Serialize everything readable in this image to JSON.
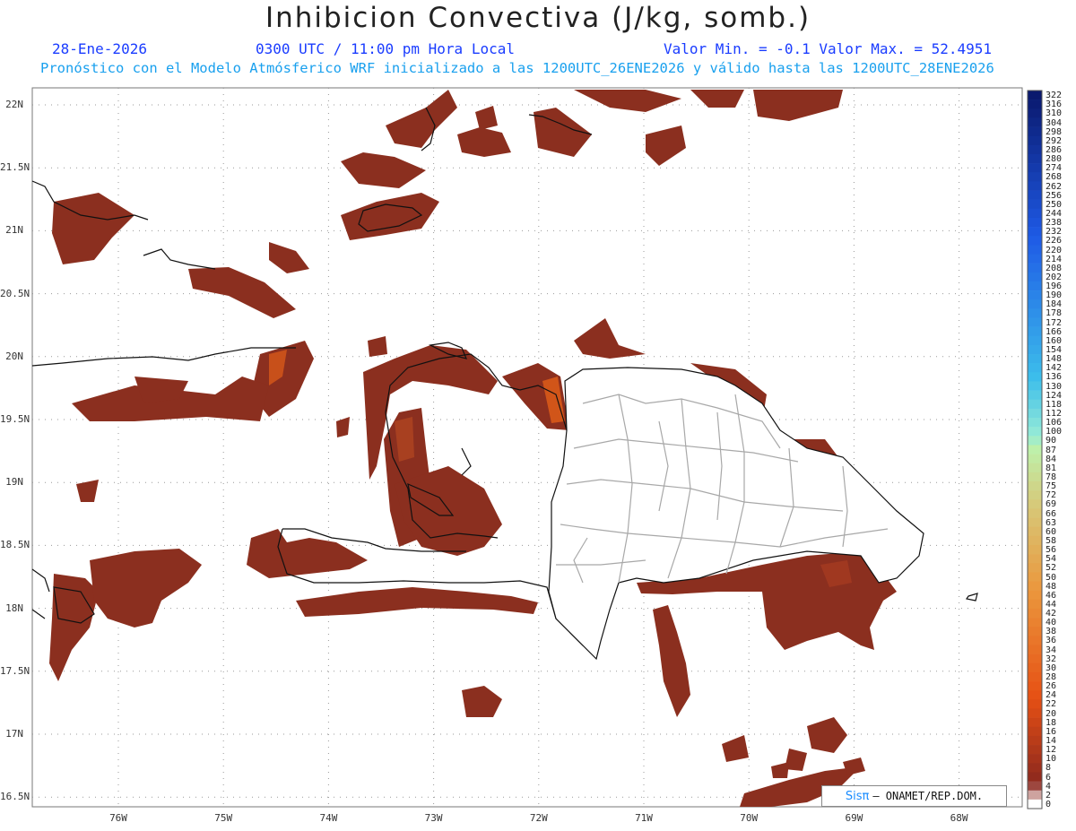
{
  "header": {
    "title": "Inhibicion Convectiva (J/kg, somb.)",
    "date": "28-Ene-2026",
    "time": "0300 UTC / 11:00 pm Hora Local",
    "minmax": "Valor Min. = -0.1  Valor Max. = 52.4951",
    "subtitle": "Pronóstico con el Modelo Atmósferico WRF inicializado a las 1200UTC_26ENE2026 y válido hasta las  1200UTC_28ENE2026"
  },
  "axes": {
    "lat_labels": [
      "22N",
      "21.5N",
      "21N",
      "20.5N",
      "20N",
      "19.5N",
      "19N",
      "18.5N",
      "18N",
      "17.5N",
      "17N",
      "16.5N"
    ],
    "lon_labels": [
      "76W",
      "75W",
      "74W",
      "73W",
      "72W",
      "71W",
      "70W",
      "69W",
      "68W"
    ]
  },
  "colorbar": {
    "labels": [
      "322",
      "316",
      "310",
      "304",
      "298",
      "292",
      "286",
      "280",
      "274",
      "268",
      "262",
      "256",
      "250",
      "244",
      "238",
      "232",
      "226",
      "220",
      "214",
      "208",
      "202",
      "196",
      "190",
      "184",
      "178",
      "172",
      "166",
      "160",
      "154",
      "148",
      "142",
      "136",
      "130",
      "124",
      "118",
      "112",
      "106",
      "100",
      "90",
      "87",
      "84",
      "81",
      "78",
      "75",
      "72",
      "69",
      "66",
      "63",
      "60",
      "58",
      "56",
      "54",
      "52",
      "50",
      "48",
      "46",
      "44",
      "42",
      "40",
      "38",
      "36",
      "34",
      "32",
      "30",
      "28",
      "26",
      "24",
      "22",
      "20",
      "18",
      "16",
      "14",
      "12",
      "10",
      "8",
      "6",
      "4",
      "2",
      "0"
    ],
    "colors": {
      "fill": "#8b2f1f",
      "fill_light": "#a8401f",
      "fill_bright": "#e85a10"
    }
  },
  "credit": {
    "brand": "Sisπ",
    "text": "– ONAMET/REP.DOM."
  }
}
